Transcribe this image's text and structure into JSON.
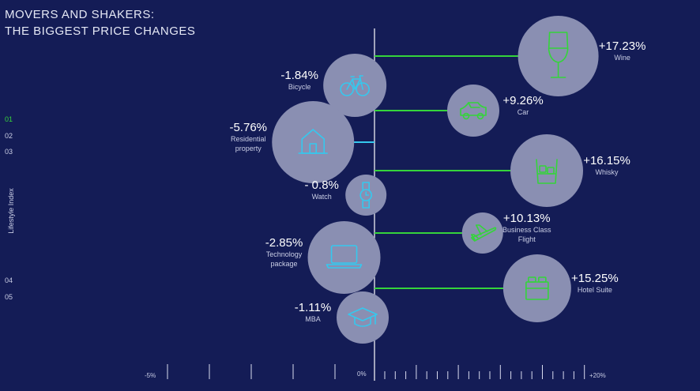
{
  "title": {
    "line1": "MOVERS AND SHAKERS:",
    "line2": "THE BIGGEST PRICE CHANGES"
  },
  "nav": {
    "side_label": "Lifestyle Index",
    "items": [
      {
        "label": "01",
        "active": true
      },
      {
        "label": "02",
        "active": false
      },
      {
        "label": "03",
        "active": false
      },
      {
        "label": "04",
        "active": false
      },
      {
        "label": "05",
        "active": false
      }
    ]
  },
  "chart_data": {
    "type": "bar",
    "orientation": "horizontal",
    "xlim": [
      -5,
      20
    ],
    "axis_labels": {
      "min": "-5%",
      "zero": "0%",
      "max": "+20%"
    },
    "colors": {
      "negative": "#35c8ee",
      "positive": "#35d43b",
      "bubble": "#8a8fb2",
      "background": "#141c56"
    },
    "items": [
      {
        "name": "Wine",
        "value": 17.23,
        "label": "+17.23%",
        "sublabel": [
          "Wine"
        ],
        "icon": "wine-glass-icon"
      },
      {
        "name": "Bicycle",
        "value": -1.84,
        "label": "-1.84%",
        "sublabel": [
          "Bicycle"
        ],
        "icon": "bicycle-icon"
      },
      {
        "name": "Car",
        "value": 9.26,
        "label": "+9.26%",
        "sublabel": [
          "Car"
        ],
        "icon": "car-icon"
      },
      {
        "name": "Residential property",
        "value": -5.76,
        "label": "-5.76%",
        "sublabel": [
          "Residential",
          "property"
        ],
        "icon": "house-icon"
      },
      {
        "name": "Whisky",
        "value": 16.15,
        "label": "+16.15%",
        "sublabel": [
          "Whisky"
        ],
        "icon": "whisky-glass-icon"
      },
      {
        "name": "Watch",
        "value": -0.8,
        "label": "- 0.8%",
        "sublabel": [
          "Watch"
        ],
        "icon": "watch-icon"
      },
      {
        "name": "Business Class Flight",
        "value": 10.13,
        "label": "+10.13%",
        "sublabel": [
          "Business Class",
          "Flight"
        ],
        "icon": "airplane-icon"
      },
      {
        "name": "Technology package",
        "value": -2.85,
        "label": "-2.85%",
        "sublabel": [
          "Technology",
          "package"
        ],
        "icon": "laptop-icon"
      },
      {
        "name": "Hotel Suite",
        "value": 15.25,
        "label": "+15.25%",
        "sublabel": [
          "Hotel Suite"
        ],
        "icon": "hotel-bed-icon"
      },
      {
        "name": "MBA",
        "value": -1.11,
        "label": "-1.11%",
        "sublabel": [
          "MBA"
        ],
        "icon": "graduation-cap-icon"
      }
    ]
  }
}
